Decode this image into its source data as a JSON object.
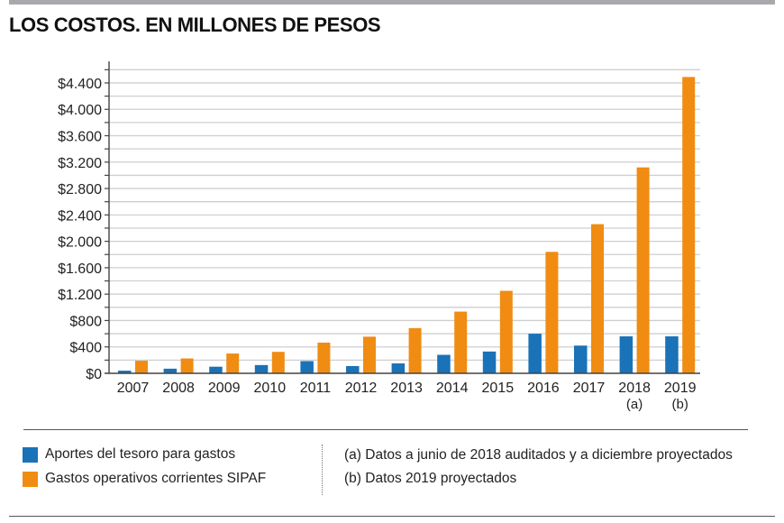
{
  "title": "LOS COSTOS. EN MILLONES DE PESOS",
  "legend": {
    "items": [
      {
        "label": "Aportes del tesoro para gastos",
        "color": "#1a72b8"
      },
      {
        "label": "Gastos operativos corrientes SIPAF",
        "color": "#f08c12"
      }
    ],
    "notes": [
      "(a) Datos a junio de 2018 auditados y a diciembre proyectados",
      "(b) Datos 2019 proyectados"
    ]
  },
  "chart_data": {
    "type": "bar",
    "title": "LOS COSTOS. EN MILLONES DE PESOS",
    "xlabel": "",
    "ylabel": "",
    "categories": [
      "2007",
      "2008",
      "2009",
      "2010",
      "2011",
      "2012",
      "2013",
      "2014",
      "2015",
      "2016",
      "2017",
      "2018",
      "2019"
    ],
    "category_notes": [
      "",
      "",
      "",
      "",
      "",
      "",
      "",
      "",
      "",
      "",
      "",
      "(a)",
      "(b)"
    ],
    "series": [
      {
        "name": "Aportes del tesoro para gastos",
        "color": "#1a72b8",
        "values": [
          40,
          70,
          100,
          125,
          185,
          110,
          150,
          280,
          330,
          600,
          420,
          560,
          560
        ]
      },
      {
        "name": "Gastos operativos corrientes SIPAF",
        "color": "#f08c12",
        "values": [
          190,
          225,
          300,
          325,
          465,
          555,
          685,
          935,
          1250,
          1840,
          2260,
          3120,
          4490
        ]
      }
    ],
    "ylim": [
      0,
      4700
    ],
    "yticks": [
      0,
      400,
      800,
      1200,
      1600,
      2000,
      2400,
      2800,
      3200,
      3600,
      4000,
      4400
    ],
    "ytick_labels": [
      "$0",
      "$400",
      "$800",
      "$1.200",
      "$1.600",
      "$2.000",
      "$2.400",
      "$2.800",
      "$3.200",
      "$3.600",
      "$4.000",
      "$4.400"
    ],
    "gridline_step": 200,
    "grid": true,
    "legend_position": "bottom-left",
    "units": "millones de pesos"
  }
}
